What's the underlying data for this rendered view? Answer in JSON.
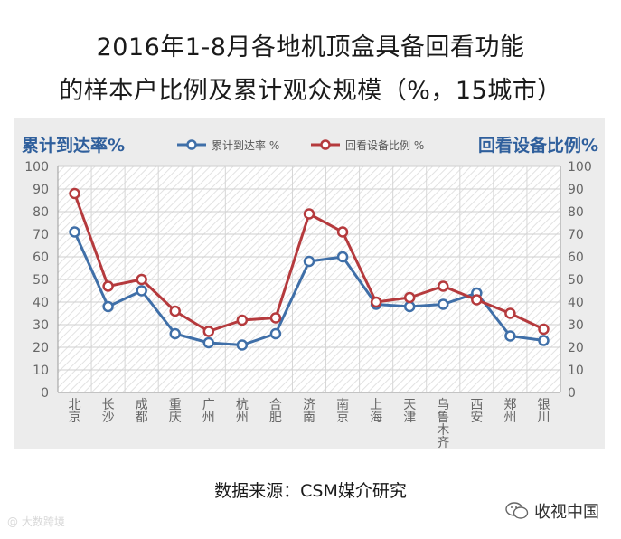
{
  "title": {
    "line1": "2016年1-8月各地机顶盒具备回看功能",
    "line2": "的样本户比例及累计观众规模（%，15城市）"
  },
  "chart_data": {
    "type": "line",
    "categories": [
      "北京",
      "长沙",
      "成都",
      "重庆",
      "广州",
      "杭州",
      "合肥",
      "济南",
      "南京",
      "上海",
      "天津",
      "乌鲁木齐",
      "西安",
      "郑州",
      "银川"
    ],
    "y_left_label": "累计到达率%",
    "y_right_label": "回看设备比例%",
    "ylim": [
      0,
      100
    ],
    "yticks": [
      0,
      10,
      20,
      30,
      40,
      50,
      60,
      70,
      80,
      90,
      100
    ],
    "legend_position": "top-center",
    "grid": true,
    "series": [
      {
        "name": "累计到达率 %",
        "color": "#3f6fa8",
        "values": [
          71,
          38,
          45,
          26,
          22,
          21,
          26,
          58,
          60,
          39,
          38,
          39,
          44,
          25,
          23
        ]
      },
      {
        "name": "回看设备比例 %",
        "color": "#b53a3d",
        "values": [
          88,
          47,
          50,
          36,
          27,
          32,
          33,
          79,
          71,
          40,
          42,
          47,
          41,
          35,
          28
        ]
      }
    ]
  },
  "source": "数据来源：CSM媒介研究",
  "wechat_account": "收视中国",
  "watermark": "@ 大数跨境"
}
